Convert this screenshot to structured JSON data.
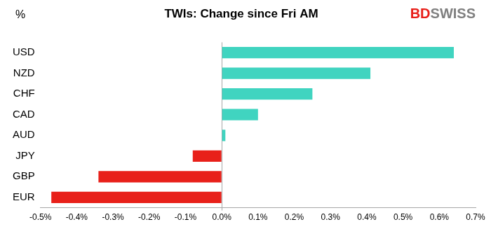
{
  "chart_data": {
    "type": "bar",
    "orientation": "horizontal",
    "title": "TWIs: Change since Fri AM",
    "xlabel": "%",
    "annotations": [
      {
        "text": "BD",
        "color": "#e8201a"
      },
      {
        "text": "SWISS",
        "color": "#7f7f7f"
      }
    ],
    "categories": [
      "USD",
      "NZD",
      "CHF",
      "CAD",
      "AUD",
      "JPY",
      "GBP",
      "EUR"
    ],
    "values": [
      0.64,
      0.41,
      0.25,
      0.1,
      0.01,
      -0.08,
      -0.34,
      -0.47
    ],
    "colors": [
      "#40d4c0",
      "#40d4c0",
      "#40d4c0",
      "#40d4c0",
      "#40d4c0",
      "#e8201a",
      "#e8201a",
      "#e8201a"
    ],
    "xlim": [
      -0.5,
      0.7
    ],
    "xticks": [
      {
        "value": -0.5,
        "label": "-0.5%"
      },
      {
        "value": -0.4,
        "label": "-0.4%"
      },
      {
        "value": -0.3,
        "label": "-0.3%"
      },
      {
        "value": -0.2,
        "label": "-0.2%"
      },
      {
        "value": -0.1,
        "label": "-0.1%"
      },
      {
        "value": 0,
        "label": "0.0%"
      },
      {
        "value": 0.1,
        "label": "0.1%"
      },
      {
        "value": 0.2,
        "label": "0.2%"
      },
      {
        "value": 0.3,
        "label": "0.3%"
      },
      {
        "value": 0.4,
        "label": "0.4%"
      },
      {
        "value": 0.5,
        "label": "0.5%"
      },
      {
        "value": 0.6,
        "label": "0.6%"
      },
      {
        "value": 0.7,
        "label": "0.7%"
      }
    ],
    "grid": false
  }
}
